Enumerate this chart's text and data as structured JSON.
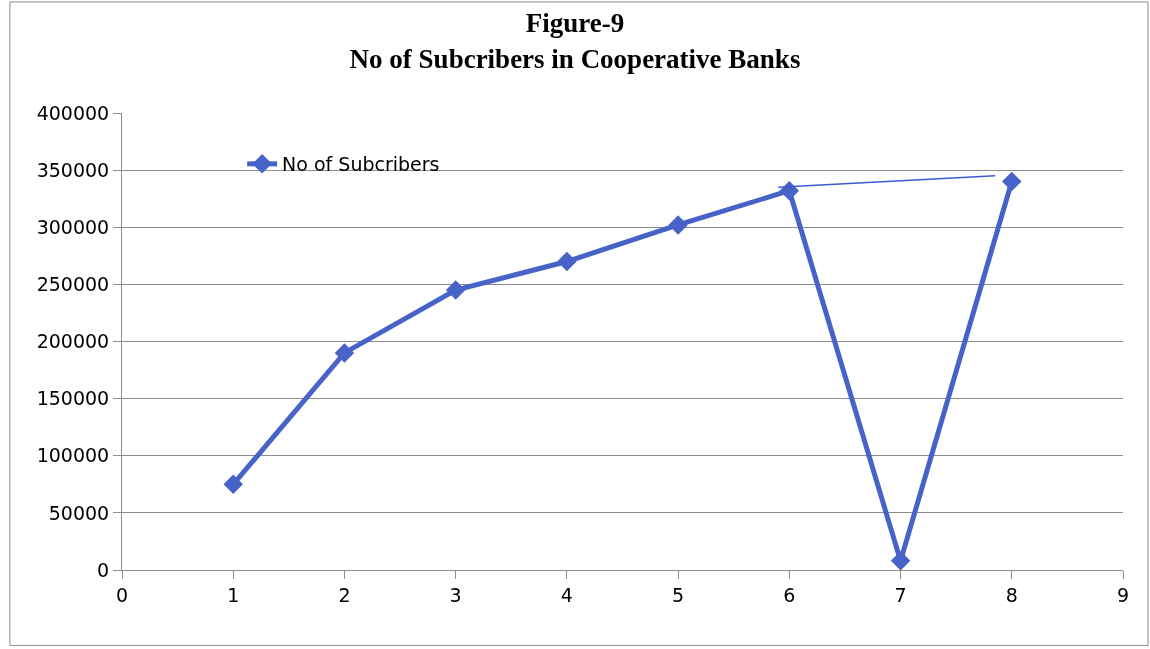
{
  "chart_data": {
    "type": "line",
    "title": "Figure-9\nNo of Subcribers in Cooperative Banks",
    "x": [
      1,
      2,
      3,
      4,
      5,
      6,
      7,
      8
    ],
    "series": [
      {
        "name": "No of Subcribers",
        "color": "#4863c8",
        "values": [
          75000,
          190000,
          245000,
          270000,
          302000,
          332000,
          8000,
          340000
        ],
        "marker": "diamond"
      },
      {
        "color": "#3a5bd0",
        "x": [
          5.9,
          7.85
        ],
        "values": [
          335000,
          345000
        ],
        "marker": "none"
      }
    ],
    "xlim": [
      0,
      9
    ],
    "xticks": [
      0,
      1,
      2,
      3,
      4,
      5,
      6,
      7,
      8,
      9
    ],
    "ylim": [
      0,
      400000
    ],
    "yticks": [
      0,
      50000,
      100000,
      150000,
      200000,
      250000,
      300000,
      350000,
      400000
    ],
    "grid": "y",
    "legend": "top left",
    "line_style": "solid"
  }
}
